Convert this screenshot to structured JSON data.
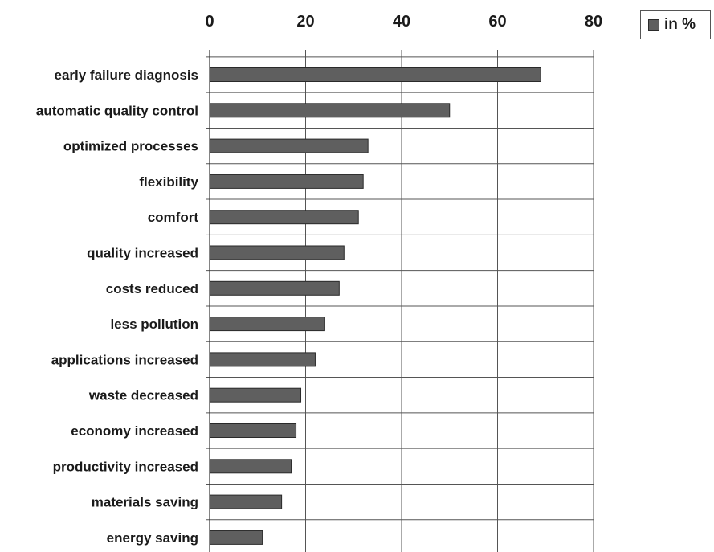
{
  "chart_data": {
    "type": "bar",
    "orientation": "horizontal",
    "categories": [
      "early failure diagnosis",
      "automatic quality control",
      "optimized processes",
      "flexibility",
      "comfort",
      "quality increased",
      "costs reduced",
      "less pollution",
      "applications increased",
      "waste decreased",
      "economy increased",
      "productivity increased",
      "materials saving",
      "energy saving"
    ],
    "series": [
      {
        "name": "in %",
        "values": [
          69,
          50,
          33,
          32,
          31,
          28,
          27,
          24,
          22,
          19,
          18,
          17,
          15,
          11
        ]
      }
    ],
    "xlim": [
      0,
      80
    ],
    "x_ticks": [
      "0",
      "20",
      "40",
      "60",
      "80"
    ],
    "axis_position": "top",
    "grid": true,
    "legend_position": "top-right",
    "bar_color": "#5f5f5f"
  }
}
